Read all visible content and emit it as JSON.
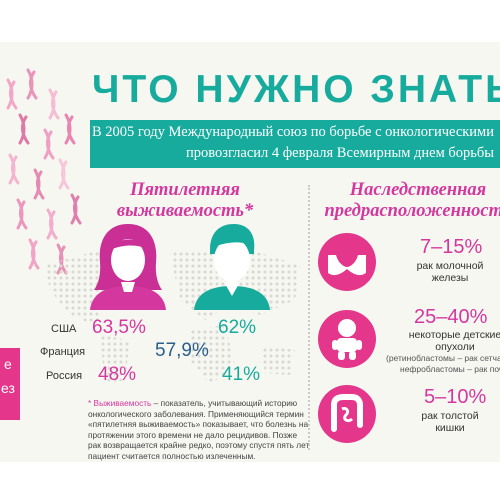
{
  "header": {
    "title": "ЧТО НУЖНО ЗНАТЬ",
    "banner_line1": "В 2005 году Международный союз по борьбе с онкологическими",
    "banner_line2": "провозгласил 4 февраля Всемирным днем борьбы"
  },
  "survival": {
    "heading_line1": "Пятилетняя",
    "heading_line2": "выживаемость*",
    "rows": [
      {
        "country": "США",
        "female": "63,5%",
        "male": "62%"
      },
      {
        "country": "Франция",
        "both": "57,9%"
      },
      {
        "country": "Россия",
        "female": "48%",
        "male": "41%"
      }
    ],
    "footnote_key": "* Выживаемость",
    "footnote_text": " – показатель, учитывающий историю онкологического заболевания. Применяющийся термин «пятилетняя выживаемость» показывает, что болезнь на протяжении этого времени не дало рецидивов. Позже рак возвращается крайне редко, поэтому спустя пять лет пациент считается полностью излеченным."
  },
  "heredity": {
    "heading_line1": "Наследственная",
    "heading_line2": "предрасположенность",
    "items": [
      {
        "icon": "bra-icon",
        "value": "7–15%",
        "line1": "рак молочной",
        "line2": "железы"
      },
      {
        "icon": "baby-icon",
        "value": "25–40%",
        "line1": "некоторые детские",
        "line2": "опухоли",
        "note1": "(ретинобластомы – рак сетчатки,",
        "note2": "нефробластомы – рак почки)"
      },
      {
        "icon": "intestine-icon",
        "value": "5–10%",
        "line1": "рак толстой",
        "line2": "кишки"
      }
    ]
  },
  "side": {
    "line1": "е",
    "line2": "ез"
  },
  "colors": {
    "teal": "#17ab9e",
    "pink": "#d4389f",
    "magenta": "#e4368a",
    "background": "#f6f7f1"
  }
}
